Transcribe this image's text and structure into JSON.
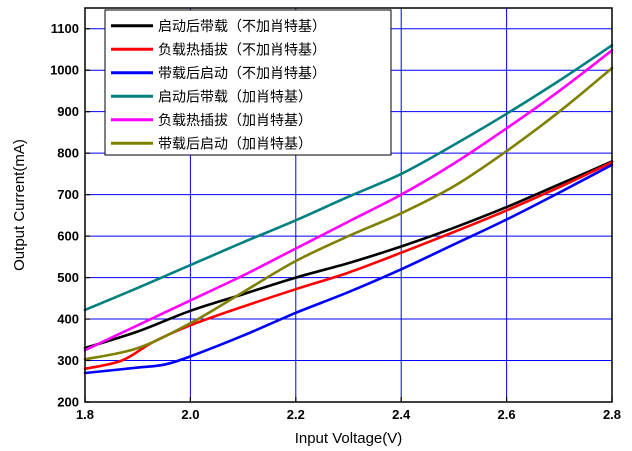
{
  "chart_data": {
    "type": "line",
    "xlabel": "Input Voltage(V)",
    "ylabel": "Output Current(mA)",
    "xlim": [
      1.8,
      2.8
    ],
    "ylim": [
      200,
      1150
    ],
    "x_ticks": [
      1.8,
      2.0,
      2.2,
      2.4,
      2.6,
      2.8
    ],
    "x_tick_labels": [
      "1.8",
      "2.0",
      "2.2",
      "2.4",
      "2.6",
      "2.8"
    ],
    "y_ticks": [
      200,
      300,
      400,
      500,
      600,
      700,
      800,
      900,
      1000,
      1100
    ],
    "y_tick_labels": [
      "200",
      "300",
      "400",
      "500",
      "600",
      "700",
      "800",
      "900",
      "1000",
      "1100"
    ],
    "grid": true,
    "grid_color": "#0000ff",
    "legend_position": "top-left",
    "series": [
      {
        "name": "启动后带载（不加肖特基）",
        "color": "#000000",
        "points": [
          [
            1.8,
            330
          ],
          [
            1.9,
            370
          ],
          [
            2.0,
            420
          ],
          [
            2.1,
            460
          ],
          [
            2.2,
            500
          ],
          [
            2.3,
            535
          ],
          [
            2.4,
            575
          ],
          [
            2.5,
            620
          ],
          [
            2.6,
            670
          ],
          [
            2.7,
            725
          ],
          [
            2.8,
            780
          ]
        ]
      },
      {
        "name": "负载热插拔（不加肖特基）",
        "color": "#ff0000",
        "points": [
          [
            1.8,
            280
          ],
          [
            1.87,
            300
          ],
          [
            1.93,
            345
          ],
          [
            2.0,
            385
          ],
          [
            2.1,
            430
          ],
          [
            2.2,
            472
          ],
          [
            2.3,
            512
          ],
          [
            2.4,
            560
          ],
          [
            2.5,
            610
          ],
          [
            2.6,
            662
          ],
          [
            2.7,
            718
          ],
          [
            2.8,
            778
          ]
        ]
      },
      {
        "name": "带载后启动（不加肖特基）",
        "color": "#0000ff",
        "points": [
          [
            1.8,
            270
          ],
          [
            1.9,
            283
          ],
          [
            1.95,
            290
          ],
          [
            2.0,
            310
          ],
          [
            2.1,
            360
          ],
          [
            2.2,
            415
          ],
          [
            2.3,
            465
          ],
          [
            2.4,
            520
          ],
          [
            2.5,
            580
          ],
          [
            2.6,
            640
          ],
          [
            2.7,
            705
          ],
          [
            2.8,
            772
          ]
        ]
      },
      {
        "name": "启动后带载（加肖特基）",
        "color": "#008080",
        "points": [
          [
            1.8,
            422
          ],
          [
            1.9,
            475
          ],
          [
            2.0,
            530
          ],
          [
            2.1,
            585
          ],
          [
            2.2,
            638
          ],
          [
            2.3,
            695
          ],
          [
            2.4,
            750
          ],
          [
            2.5,
            820
          ],
          [
            2.6,
            895
          ],
          [
            2.7,
            975
          ],
          [
            2.8,
            1060
          ]
        ]
      },
      {
        "name": "负载热插拔（加肖特基）",
        "color": "#ff00ff",
        "points": [
          [
            1.8,
            325
          ],
          [
            1.9,
            385
          ],
          [
            2.0,
            445
          ],
          [
            2.1,
            505
          ],
          [
            2.2,
            570
          ],
          [
            2.3,
            635
          ],
          [
            2.4,
            700
          ],
          [
            2.5,
            775
          ],
          [
            2.6,
            860
          ],
          [
            2.7,
            950
          ],
          [
            2.8,
            1048
          ]
        ]
      },
      {
        "name": "带载后启动（加肖特基）",
        "color": "#808000",
        "points": [
          [
            1.8,
            303
          ],
          [
            1.9,
            330
          ],
          [
            2.0,
            390
          ],
          [
            2.1,
            465
          ],
          [
            2.2,
            540
          ],
          [
            2.3,
            600
          ],
          [
            2.4,
            655
          ],
          [
            2.5,
            720
          ],
          [
            2.6,
            805
          ],
          [
            2.7,
            900
          ],
          [
            2.8,
            1005
          ]
        ]
      }
    ]
  }
}
